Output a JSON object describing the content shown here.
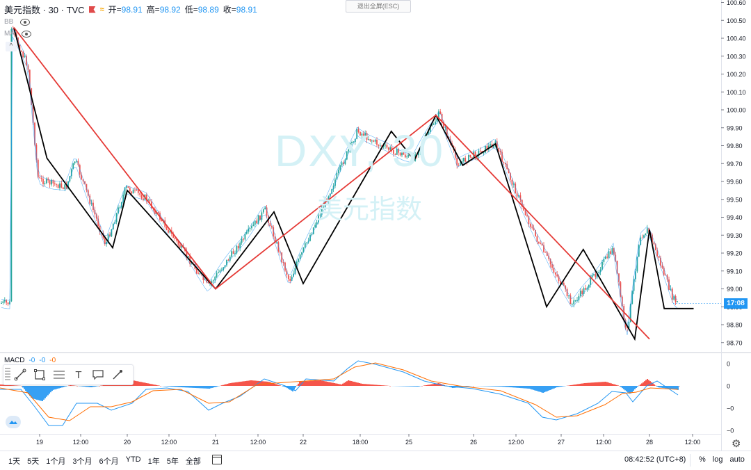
{
  "legend": {
    "symbol": "美元指数 · 30 · TVC",
    "open_label": "开=",
    "open": "98.91",
    "high_label": "高=",
    "high": "98.92",
    "low_label": "低=",
    "low": "98.89",
    "close_label": "收=",
    "close": "98.91"
  },
  "indicators": {
    "bb": "BB",
    "ma": "MA"
  },
  "exit_fullscreen": "退出全屏(ESC)",
  "watermark": {
    "ticker": "DXY, 30",
    "name": "美元指数"
  },
  "macd": {
    "label": "MACD",
    "v1": "-0",
    "v2": "-0",
    "v3": "-0"
  },
  "price_axis": [
    "100.60",
    "100.50",
    "100.40",
    "100.30",
    "100.20",
    "100.10",
    "100.00",
    "99.90",
    "99.80",
    "99.70",
    "99.60",
    "99.50",
    "99.40",
    "99.30",
    "99.20",
    "99.10",
    "99.00",
    "98.90",
    "98.80",
    "98.70"
  ],
  "macd_axis": [
    "0",
    "0",
    "−0",
    "−0"
  ],
  "time_axis": [
    "19",
    "12:00",
    "20",
    "12:00",
    "21",
    "12:00",
    "22",
    "18:00",
    "25",
    "26",
    "12:00",
    "27",
    "12:00",
    "28",
    "12:00"
  ],
  "price_tag": "17:08",
  "ranges": [
    "1天",
    "5天",
    "1个月",
    "3个月",
    "6个月",
    "YTD",
    "1年",
    "5年",
    "全部"
  ],
  "clock": "08:42:52 (UTC+8)",
  "options": {
    "percent": "%",
    "log": "log",
    "auto": "auto"
  },
  "colors": {
    "up": "#26a69a",
    "down": "#ef5350",
    "accent": "#2196f3",
    "zigzag_major": "#e53935",
    "zigzag_minor": "#000000",
    "macd_line": "#2196f3",
    "signal_line": "#ff6d00"
  },
  "chart_data": {
    "type": "line",
    "title": "美元指数 · 30 · TVC",
    "series": [
      {
        "name": "",
        "color": "#000000",
        "x": [
          "18 16:00",
          "19 02:00",
          "19 20:00",
          "20 00:00",
          "21 00:00",
          "21 16:00",
          "22 00:00",
          "22 20:00",
          "25 02:00",
          "25 10:00",
          "25 20:00",
          "26 06:00",
          "26 20:00",
          "27 06:00",
          "27 20:00",
          "28 00:00",
          "28 04:00",
          "28 12:00"
        ],
        "values": [
          100.46,
          99.73,
          99.23,
          99.55,
          99.0,
          99.43,
          99.03,
          99.88,
          99.72,
          99.97,
          99.69,
          99.81,
          98.9,
          99.22,
          98.72,
          99.33,
          98.89,
          98.89
        ]
      },
      {
        "name": "",
        "color": "#e53935",
        "x": [
          "18 16:00",
          "21 00:00",
          "25 10:00",
          "28 00:00"
        ],
        "values": [
          100.46,
          99.0,
          99.97,
          98.72
        ]
      }
    ],
    "ylim": [
      98.65,
      100.62
    ],
    "xlabel": "",
    "ylabel": "",
    "grid": false
  }
}
